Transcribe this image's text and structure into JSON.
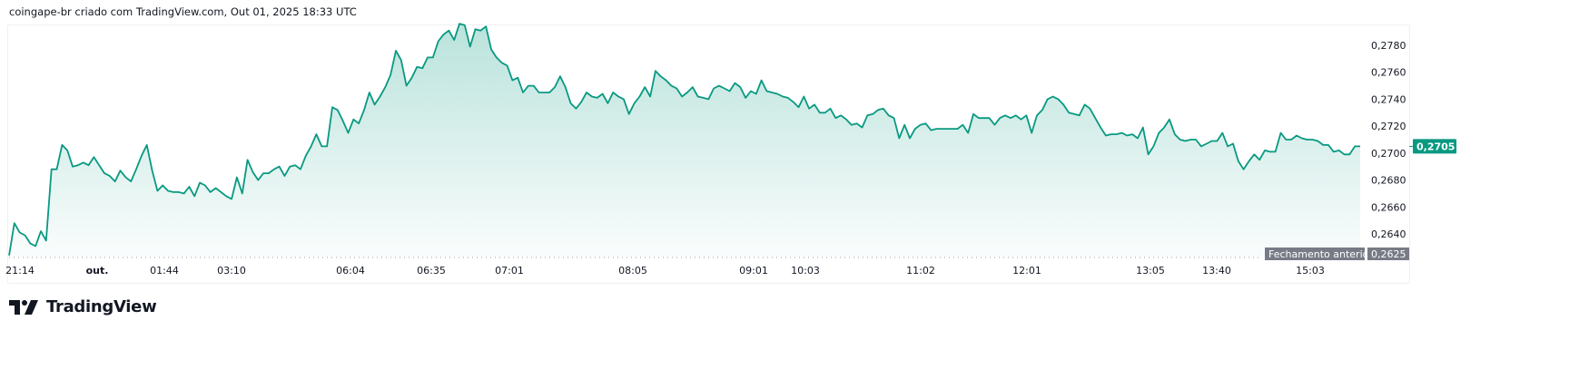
{
  "header": {
    "title": "coingape-br criado com TradingView.com, Out 01, 2025 18:33 UTC"
  },
  "logo": {
    "text": "TradingView",
    "icon": "tradingview-logo-icon"
  },
  "colors": {
    "line": "#089981",
    "fill": "#089981",
    "prev_close_label": "#787b86",
    "last_price_label": "#089981"
  },
  "chart_data": {
    "type": "area",
    "title": "",
    "xlabel": "",
    "ylabel": "",
    "ylim": [
      0.262,
      0.28
    ],
    "grid": false,
    "x_ticks": [
      "21:14",
      "out.",
      "01:44",
      "03:10",
      "06:04",
      "06:35",
      "07:01",
      "08:05",
      "09:01",
      "10:03",
      "11:02",
      "12:01",
      "13:05",
      "13:40",
      "15:03"
    ],
    "y_ticks": [
      "0,2640",
      "0,2660",
      "0,2680",
      "0,2700",
      "0,2720",
      "0,2740",
      "0,2760",
      "0,2780"
    ],
    "y_tick_values": [
      0.264,
      0.266,
      0.268,
      0.27,
      0.272,
      0.274,
      0.276,
      0.278
    ],
    "last_price": {
      "value": 0.2705,
      "label": "0,2705"
    },
    "previous_close": {
      "value": 0.2625,
      "label": "0,2625",
      "caption": "Fechamento anterior"
    },
    "values": [
      0.2624,
      0.2648,
      0.2641,
      0.2639,
      0.2633,
      0.2631,
      0.2642,
      0.2635,
      0.2688,
      0.2688,
      0.2706,
      0.2702,
      0.269,
      0.2691,
      0.2693,
      0.2691,
      0.2697,
      0.2691,
      0.2685,
      0.2683,
      0.2679,
      0.2687,
      0.2682,
      0.2679,
      0.2688,
      0.2698,
      0.2706,
      0.2687,
      0.2672,
      0.2676,
      0.2672,
      0.2671,
      0.2671,
      0.267,
      0.2675,
      0.2668,
      0.2678,
      0.2676,
      0.2671,
      0.2674,
      0.2671,
      0.2668,
      0.2666,
      0.2682,
      0.267,
      0.2695,
      0.2686,
      0.268,
      0.2685,
      0.2685,
      0.2688,
      0.269,
      0.2683,
      0.269,
      0.2691,
      0.2688,
      0.2698,
      0.2705,
      0.2714,
      0.2705,
      0.2705,
      0.2734,
      0.2732,
      0.2724,
      0.2715,
      0.2725,
      0.2722,
      0.2732,
      0.2745,
      0.2736,
      0.2742,
      0.2749,
      0.2758,
      0.2776,
      0.2769,
      0.275,
      0.2756,
      0.2764,
      0.2763,
      0.2771,
      0.2771,
      0.2783,
      0.2788,
      0.2791,
      0.2784,
      0.2796,
      0.2795,
      0.2779,
      0.2792,
      0.2791,
      0.2794,
      0.2777,
      0.2771,
      0.2767,
      0.2765,
      0.2754,
      0.2756,
      0.2745,
      0.275,
      0.275,
      0.2745,
      0.2745,
      0.2745,
      0.2749,
      0.2757,
      0.2749,
      0.2737,
      0.2733,
      0.2738,
      0.2745,
      0.2742,
      0.2741,
      0.2744,
      0.2737,
      0.2745,
      0.2742,
      0.274,
      0.2729,
      0.2737,
      0.2742,
      0.2749,
      0.2742,
      0.2761,
      0.2757,
      0.2754,
      0.275,
      0.2748,
      0.2742,
      0.2745,
      0.2749,
      0.2742,
      0.2741,
      0.274,
      0.2748,
      0.275,
      0.2748,
      0.2746,
      0.2752,
      0.2749,
      0.2741,
      0.2746,
      0.2744,
      0.2754,
      0.2746,
      0.2745,
      0.2744,
      0.2742,
      0.2741,
      0.2738,
      0.2734,
      0.2742,
      0.2733,
      0.2736,
      0.273,
      0.273,
      0.2733,
      0.2726,
      0.2728,
      0.2725,
      0.2721,
      0.2722,
      0.2719,
      0.2728,
      0.2729,
      0.2732,
      0.2733,
      0.2728,
      0.2726,
      0.2711,
      0.2721,
      0.2711,
      0.2718,
      0.2721,
      0.2722,
      0.2717,
      0.2718,
      0.2718,
      0.2718,
      0.2718,
      0.2718,
      0.2721,
      0.2715,
      0.2729,
      0.2726,
      0.2726,
      0.2726,
      0.2721,
      0.2726,
      0.2728,
      0.2726,
      0.2728,
      0.2725,
      0.2728,
      0.2715,
      0.2728,
      0.2732,
      0.274,
      0.2742,
      0.274,
      0.2736,
      0.273,
      0.2729,
      0.2728,
      0.2736,
      0.2733,
      0.2726,
      0.2719,
      0.2713,
      0.2714,
      0.2714,
      0.2715,
      0.2713,
      0.2714,
      0.2711,
      0.2719,
      0.2699,
      0.2705,
      0.2715,
      0.2719,
      0.2725,
      0.2714,
      0.271,
      0.2709,
      0.271,
      0.271,
      0.2705,
      0.2707,
      0.2709,
      0.2709,
      0.2715,
      0.2705,
      0.2707,
      0.2694,
      0.2688,
      0.2694,
      0.2699,
      0.2695,
      0.2702,
      0.2701,
      0.2701,
      0.2715,
      0.271,
      0.271,
      0.2713,
      0.2711,
      0.271,
      0.271,
      0.2709,
      0.2706,
      0.2706,
      0.2701,
      0.2702,
      0.2699,
      0.2699,
      0.2705,
      0.2705
    ]
  }
}
